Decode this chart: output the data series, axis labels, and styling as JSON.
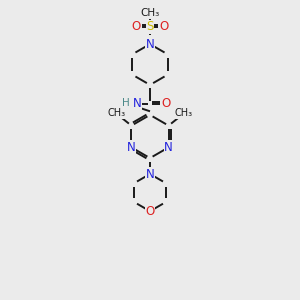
{
  "bg_color": "#ebebeb",
  "bond_color": "#1a1a1a",
  "N_color": "#2222dd",
  "O_color": "#dd2222",
  "S_color": "#ccbb00",
  "H_color": "#4a8888",
  "figsize": [
    3.0,
    3.0
  ],
  "dpi": 100,
  "xlim": [
    0,
    10
  ],
  "ylim": [
    0,
    10
  ]
}
